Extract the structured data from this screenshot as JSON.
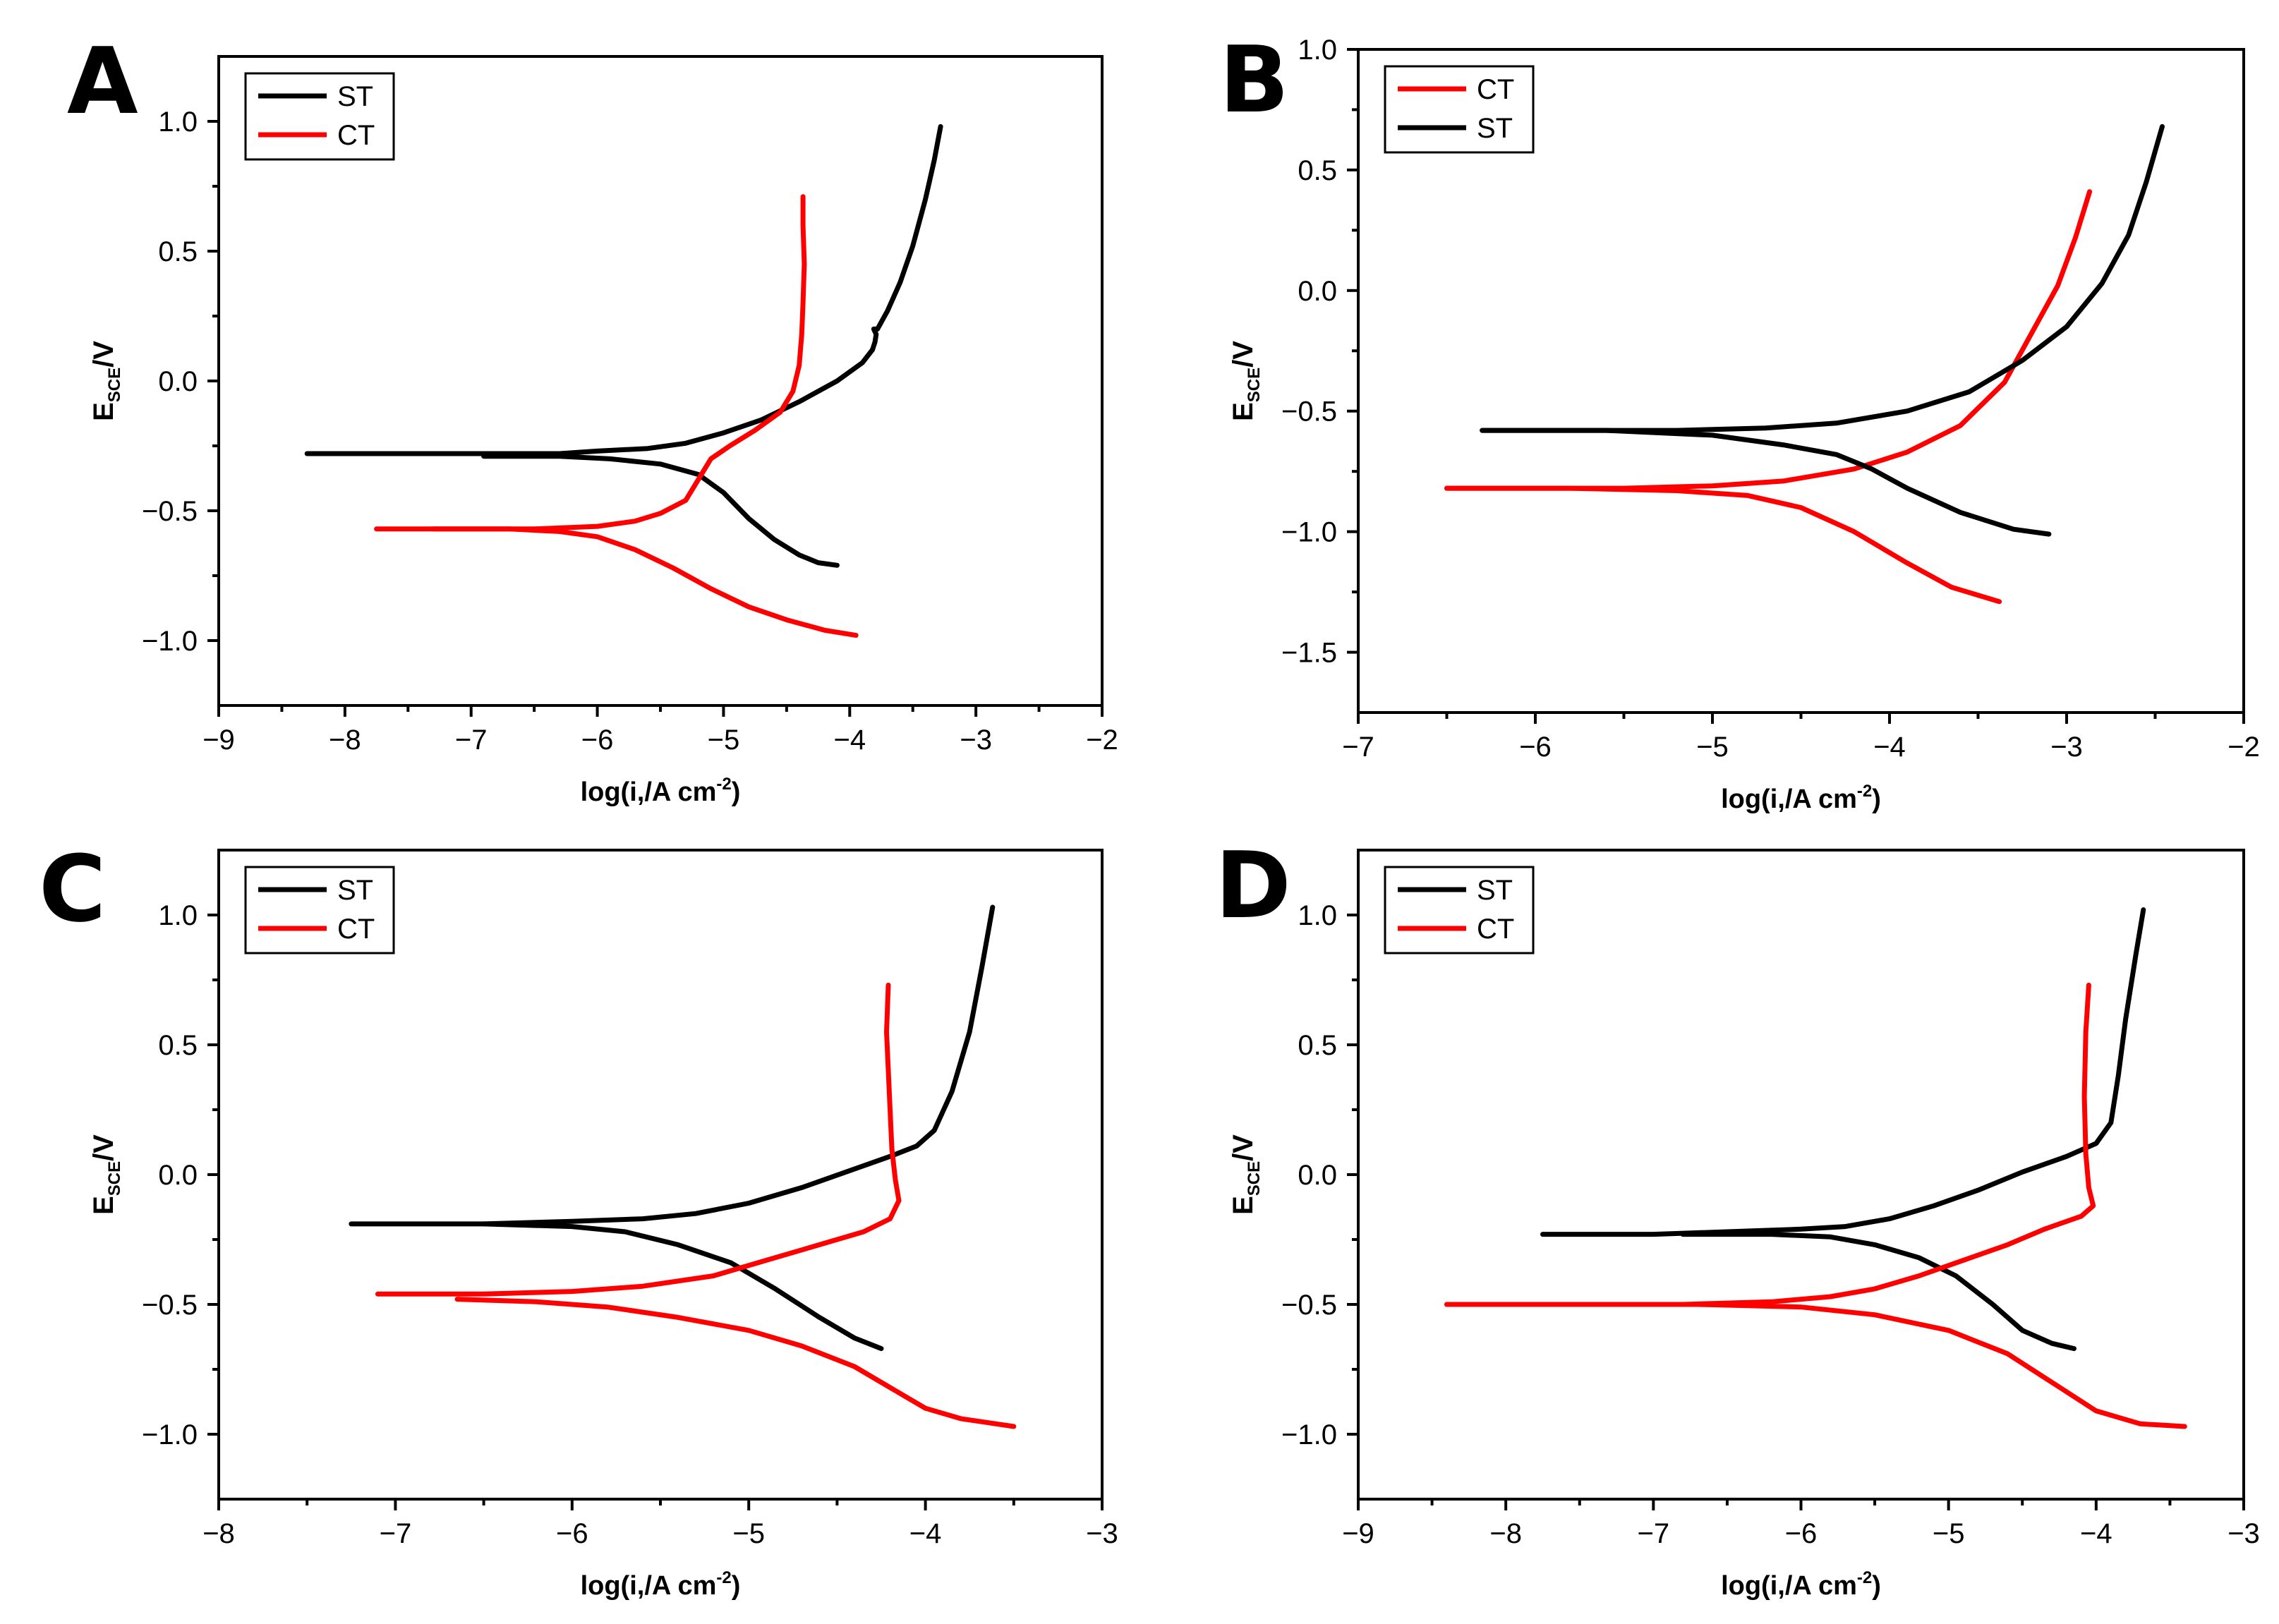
{
  "colors": {
    "ST": "#000000",
    "CT": "#ff0000",
    "axis": "#000000",
    "background": "#ffffff"
  },
  "chart_data": [
    {
      "panel": "A",
      "type": "line",
      "xlabel": "log(i,/A cm-2)",
      "xlabel_parts": {
        "main": "log(i,/A cm",
        "sup": "-2",
        "close": ")"
      },
      "ylabel_parts": {
        "main": "E",
        "sub": "SCE",
        "rest": "/V"
      },
      "xlim": [
        -9,
        -2
      ],
      "ylim": [
        -1.25,
        1.25
      ],
      "xticks": [
        -9,
        -8,
        -7,
        -6,
        -5,
        -4,
        -3,
        -2
      ],
      "xtick_labels": [
        "−9",
        "−8",
        "−7",
        "−6",
        "−5",
        "−4",
        "−3",
        "−2"
      ],
      "yticks": [
        -1.0,
        -0.5,
        0.0,
        0.5,
        1.0
      ],
      "ytick_labels": [
        "−1.0",
        "−0.5",
        "0.0",
        "0.5",
        "1.0"
      ],
      "legend_position": "top-left",
      "legend": [
        "ST",
        "CT"
      ],
      "series": [
        {
          "name": "ST",
          "color": "#000000",
          "anodic": {
            "x": [
              -8.3,
              -7.0,
              -6.3,
              -6.0,
              -5.6,
              -5.3,
              -5.0,
              -4.7,
              -4.4,
              -4.1,
              -3.9,
              -3.82
            ],
            "y": [
              -0.28,
              -0.28,
              -0.28,
              -0.27,
              -0.26,
              -0.24,
              -0.2,
              -0.15,
              -0.08,
              0.0,
              0.07,
              0.12
            ]
          },
          "pit": {
            "x": [
              -3.82,
              -3.8,
              -3.79,
              -3.81,
              -3.78
            ],
            "y": [
              0.12,
              0.15,
              0.18,
              0.2,
              0.2
            ]
          },
          "anodic2": {
            "x": [
              -3.78,
              -3.7,
              -3.6,
              -3.5,
              -3.4,
              -3.33,
              -3.28
            ],
            "y": [
              0.2,
              0.27,
              0.38,
              0.52,
              0.7,
              0.85,
              0.98
            ]
          },
          "cathodic": {
            "x": [
              -6.9,
              -6.3,
              -5.9,
              -5.5,
              -5.2,
              -5.0,
              -4.8,
              -4.6,
              -4.4,
              -4.25,
              -4.1
            ],
            "y": [
              -0.29,
              -0.29,
              -0.3,
              -0.32,
              -0.36,
              -0.43,
              -0.53,
              -0.61,
              -0.67,
              -0.7,
              -0.71
            ]
          }
        },
        {
          "name": "CT",
          "color": "#ff0000",
          "anodic": {
            "x": [
              -7.75,
              -7.0,
              -6.5,
              -6.0,
              -5.7,
              -5.5,
              -5.3,
              -5.2,
              -5.1,
              -4.95,
              -4.75,
              -4.55,
              -4.45,
              -4.4,
              -4.38,
              -4.37,
              -4.36,
              -4.37,
              -4.37
            ],
            "y": [
              -0.57,
              -0.57,
              -0.57,
              -0.56,
              -0.54,
              -0.51,
              -0.46,
              -0.38,
              -0.3,
              -0.25,
              -0.19,
              -0.12,
              -0.04,
              0.06,
              0.18,
              0.3,
              0.45,
              0.6,
              0.71
            ]
          },
          "cathodic": {
            "x": [
              -7.3,
              -6.7,
              -6.3,
              -6.0,
              -5.7,
              -5.4,
              -5.1,
              -4.8,
              -4.5,
              -4.2,
              -3.95
            ],
            "y": [
              -0.57,
              -0.57,
              -0.58,
              -0.6,
              -0.65,
              -0.72,
              -0.8,
              -0.87,
              -0.92,
              -0.96,
              -0.98
            ]
          }
        }
      ]
    },
    {
      "panel": "B",
      "type": "line",
      "xlabel": "log(i,/A cm-2)",
      "xlabel_parts": {
        "main": "log(i,/A cm",
        "sup": "-2",
        "close": ")"
      },
      "ylabel_parts": {
        "main": "E",
        "sub": "SCE",
        "rest": "/V"
      },
      "xlim": [
        -7,
        -2
      ],
      "ylim": [
        -1.75,
        1.0
      ],
      "xticks": [
        -7,
        -6,
        -5,
        -4,
        -3,
        -2
      ],
      "xtick_labels": [
        "−7",
        "−6",
        "−5",
        "−4",
        "−3",
        "−2"
      ],
      "yticks": [
        -1.5,
        -1.0,
        -0.5,
        0.0,
        0.5,
        1.0
      ],
      "ytick_labels": [
        "−1.5",
        "−1.0",
        "−0.5",
        "0.0",
        "0.5",
        "1.0"
      ],
      "legend_position": "top-left",
      "legend": [
        "CT",
        "ST"
      ],
      "series": [
        {
          "name": "CT",
          "color": "#ff0000",
          "anodic": {
            "x": [
              -6.5,
              -6.0,
              -5.5,
              -5.0,
              -4.6,
              -4.2,
              -3.9,
              -3.6,
              -3.35,
              -3.2,
              -3.05,
              -2.95,
              -2.87
            ],
            "y": [
              -0.82,
              -0.82,
              -0.82,
              -0.81,
              -0.79,
              -0.74,
              -0.67,
              -0.56,
              -0.38,
              -0.18,
              0.02,
              0.22,
              0.41
            ]
          },
          "cathodic": {
            "x": [
              -6.5,
              -5.8,
              -5.2,
              -4.8,
              -4.5,
              -4.2,
              -3.9,
              -3.65,
              -3.38
            ],
            "y": [
              -0.82,
              -0.82,
              -0.83,
              -0.85,
              -0.9,
              -1.0,
              -1.13,
              -1.23,
              -1.29
            ]
          }
        },
        {
          "name": "ST",
          "color": "#000000",
          "anodic": {
            "x": [
              -6.3,
              -5.8,
              -5.2,
              -4.7,
              -4.3,
              -3.9,
              -3.55,
              -3.25,
              -3.0,
              -2.8,
              -2.65,
              -2.55,
              -2.46
            ],
            "y": [
              -0.58,
              -0.58,
              -0.58,
              -0.57,
              -0.55,
              -0.5,
              -0.42,
              -0.29,
              -0.15,
              0.03,
              0.23,
              0.45,
              0.68
            ]
          },
          "cathodic": {
            "x": [
              -6.3,
              -5.6,
              -5.0,
              -4.6,
              -4.3,
              -4.1,
              -3.9,
              -3.6,
              -3.3,
              -3.1
            ],
            "y": [
              -0.58,
              -0.58,
              -0.6,
              -0.64,
              -0.68,
              -0.74,
              -0.82,
              -0.92,
              -0.99,
              -1.01
            ]
          }
        }
      ]
    },
    {
      "panel": "C",
      "type": "line",
      "xlabel": "log(i,/A cm-2)",
      "xlabel_parts": {
        "main": "log(i,/A cm",
        "sup": "-2",
        "close": ")"
      },
      "ylabel_parts": {
        "main": "E",
        "sub": "SCE",
        "rest": "/V"
      },
      "xlim": [
        -8,
        -3
      ],
      "ylim": [
        -1.25,
        1.25
      ],
      "xticks": [
        -8,
        -7,
        -6,
        -5,
        -4,
        -3
      ],
      "xtick_labels": [
        "−8",
        "−7",
        "−6",
        "−5",
        "−4",
        "−3"
      ],
      "yticks": [
        -1.0,
        -0.5,
        0.0,
        0.5,
        1.0
      ],
      "ytick_labels": [
        "−1.0",
        "−0.5",
        "0.0",
        "0.5",
        "1.0"
      ],
      "legend_position": "top-left",
      "legend": [
        "ST",
        "CT"
      ],
      "series": [
        {
          "name": "ST",
          "color": "#000000",
          "anodic": {
            "x": [
              -7.25,
              -6.5,
              -6.0,
              -5.6,
              -5.3,
              -5.0,
              -4.7,
              -4.45,
              -4.2,
              -4.05,
              -3.95,
              -3.85,
              -3.75,
              -3.68,
              -3.62
            ],
            "y": [
              -0.19,
              -0.19,
              -0.18,
              -0.17,
              -0.15,
              -0.11,
              -0.05,
              0.01,
              0.07,
              0.11,
              0.17,
              0.32,
              0.55,
              0.8,
              1.03
            ]
          },
          "cathodic": {
            "x": [
              -6.5,
              -6.0,
              -5.7,
              -5.4,
              -5.1,
              -4.85,
              -4.6,
              -4.4,
              -4.25
            ],
            "y": [
              -0.19,
              -0.2,
              -0.22,
              -0.27,
              -0.34,
              -0.44,
              -0.55,
              -0.63,
              -0.67
            ]
          }
        },
        {
          "name": "CT",
          "color": "#ff0000",
          "anodic": {
            "x": [
              -7.1,
              -6.5,
              -6.0,
              -5.6,
              -5.2,
              -4.9,
              -4.6,
              -4.35,
              -4.2,
              -4.15,
              -4.17,
              -4.19,
              -4.2,
              -4.21,
              -4.22,
              -4.21
            ],
            "y": [
              -0.46,
              -0.46,
              -0.45,
              -0.43,
              -0.39,
              -0.33,
              -0.27,
              -0.22,
              -0.17,
              -0.1,
              -0.02,
              0.1,
              0.25,
              0.4,
              0.55,
              0.73
            ]
          },
          "cathodic": {
            "x": [
              -6.65,
              -6.2,
              -5.8,
              -5.4,
              -5.0,
              -4.7,
              -4.4,
              -4.2,
              -4.0,
              -3.8,
              -3.5
            ],
            "y": [
              -0.48,
              -0.49,
              -0.51,
              -0.55,
              -0.6,
              -0.66,
              -0.74,
              -0.82,
              -0.9,
              -0.94,
              -0.97
            ]
          }
        }
      ]
    },
    {
      "panel": "D",
      "type": "line",
      "xlabel": "log(i,/A cm-2)",
      "xlabel_parts": {
        "main": "log(i,/A cm",
        "sup": "-2",
        "close": ")"
      },
      "ylabel_parts": {
        "main": "E",
        "sub": "SCE",
        "rest": "/V"
      },
      "xlim": [
        -9,
        -3
      ],
      "ylim": [
        -1.25,
        1.25
      ],
      "xticks": [
        -9,
        -8,
        -7,
        -6,
        -5,
        -4,
        -3
      ],
      "xtick_labels": [
        "−9",
        "−8",
        "−7",
        "−6",
        "−5",
        "−4",
        "−3"
      ],
      "yticks": [
        -1.0,
        -0.5,
        0.0,
        0.5,
        1.0
      ],
      "ytick_labels": [
        "−1.0",
        "−0.5",
        "0.0",
        "0.5",
        "1.0"
      ],
      "legend_position": "top-left",
      "legend": [
        "ST",
        "CT"
      ],
      "series": [
        {
          "name": "ST",
          "color": "#000000",
          "anodic": {
            "x": [
              -7.75,
              -7.0,
              -6.5,
              -6.0,
              -5.7,
              -5.4,
              -5.1,
              -4.8,
              -4.5,
              -4.2,
              -4.0,
              -3.9,
              -3.85,
              -3.8,
              -3.73,
              -3.68
            ],
            "y": [
              -0.23,
              -0.23,
              -0.22,
              -0.21,
              -0.2,
              -0.17,
              -0.12,
              -0.06,
              0.01,
              0.07,
              0.12,
              0.2,
              0.38,
              0.6,
              0.85,
              1.02
            ]
          },
          "cathodic": {
            "x": [
              -6.8,
              -6.2,
              -5.8,
              -5.5,
              -5.2,
              -4.95,
              -4.7,
              -4.5,
              -4.3,
              -4.15
            ],
            "y": [
              -0.23,
              -0.23,
              -0.24,
              -0.27,
              -0.32,
              -0.39,
              -0.5,
              -0.6,
              -0.65,
              -0.67
            ]
          }
        },
        {
          "name": "CT",
          "color": "#ff0000",
          "anodic": {
            "x": [
              -8.4,
              -7.5,
              -6.8,
              -6.2,
              -5.8,
              -5.5,
              -5.2,
              -4.9,
              -4.6,
              -4.35,
              -4.1,
              -4.02,
              -4.05,
              -4.07,
              -4.08,
              -4.07,
              -4.05
            ],
            "y": [
              -0.5,
              -0.5,
              -0.5,
              -0.49,
              -0.47,
              -0.44,
              -0.39,
              -0.33,
              -0.27,
              -0.21,
              -0.16,
              -0.12,
              -0.05,
              0.08,
              0.3,
              0.55,
              0.73
            ]
          },
          "cathodic": {
            "x": [
              -8.4,
              -7.5,
              -6.7,
              -6.0,
              -5.5,
              -5.0,
              -4.6,
              -4.3,
              -4.0,
              -3.7,
              -3.4
            ],
            "y": [
              -0.5,
              -0.5,
              -0.5,
              -0.51,
              -0.54,
              -0.6,
              -0.69,
              -0.8,
              -0.91,
              -0.96,
              -0.97
            ]
          }
        }
      ]
    }
  ]
}
